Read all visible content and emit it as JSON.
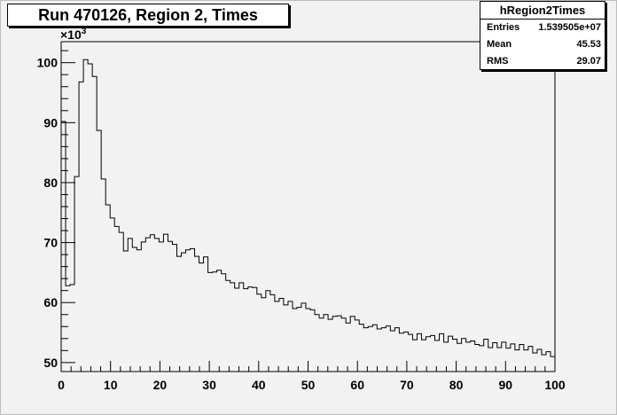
{
  "chart_data": {
    "type": "histogram",
    "title": "Run 470126, Region 2, Times",
    "exponent_label": "×10",
    "exponent_power": "3",
    "stats": {
      "name": "hRegion2Times",
      "rows": [
        {
          "label": "Entries",
          "value": "1.539505e+07"
        },
        {
          "label": "Mean",
          "value": "45.53"
        },
        {
          "label": "RMS",
          "value": "29.07"
        }
      ]
    },
    "xlim": [
      0,
      100
    ],
    "ylim": [
      48500,
      103500
    ],
    "x_ticks": [
      "0",
      "10",
      "20",
      "30",
      "40",
      "50",
      "60",
      "70",
      "80",
      "90",
      "100"
    ],
    "y_ticks": [
      {
        "value": 50000,
        "label": "50"
      },
      {
        "value": 60000,
        "label": "60"
      },
      {
        "value": 70000,
        "label": "70"
      },
      {
        "value": 80000,
        "label": "80"
      },
      {
        "value": 90000,
        "label": "90"
      },
      {
        "value": 100000,
        "label": "100"
      }
    ],
    "bin_width": 1,
    "values": [
      90200,
      62800,
      63000,
      81000,
      96800,
      100500,
      99800,
      97700,
      88700,
      80600,
      76300,
      74100,
      72700,
      71700,
      68600,
      70700,
      69200,
      68800,
      70100,
      70800,
      71300,
      70700,
      70100,
      71400,
      70200,
      69700,
      67700,
      68300,
      68800,
      69000,
      67700,
      66600,
      67600,
      65000,
      65100,
      65400,
      64800,
      63700,
      63300,
      62400,
      63300,
      62300,
      62600,
      62500,
      61400,
      60800,
      62000,
      61300,
      60200,
      60700,
      59600,
      60200,
      59000,
      59200,
      59900,
      59000,
      58800,
      58000,
      57400,
      58000,
      57200,
      57700,
      57800,
      57400,
      56600,
      57700,
      57100,
      56400,
      55800,
      56000,
      56300,
      55600,
      55800,
      56100,
      55300,
      55800,
      54900,
      55100,
      54700,
      53800,
      54800,
      53800,
      54300,
      54500,
      53700,
      54800,
      53400,
      54400,
      53900,
      53200,
      54000,
      53400,
      53600,
      53000,
      52800,
      53900,
      52500,
      53300,
      52500,
      53400,
      52400,
      53100,
      52100,
      53000,
      52100,
      52700,
      51600,
      52200,
      51300,
      51800,
      51000
    ]
  }
}
